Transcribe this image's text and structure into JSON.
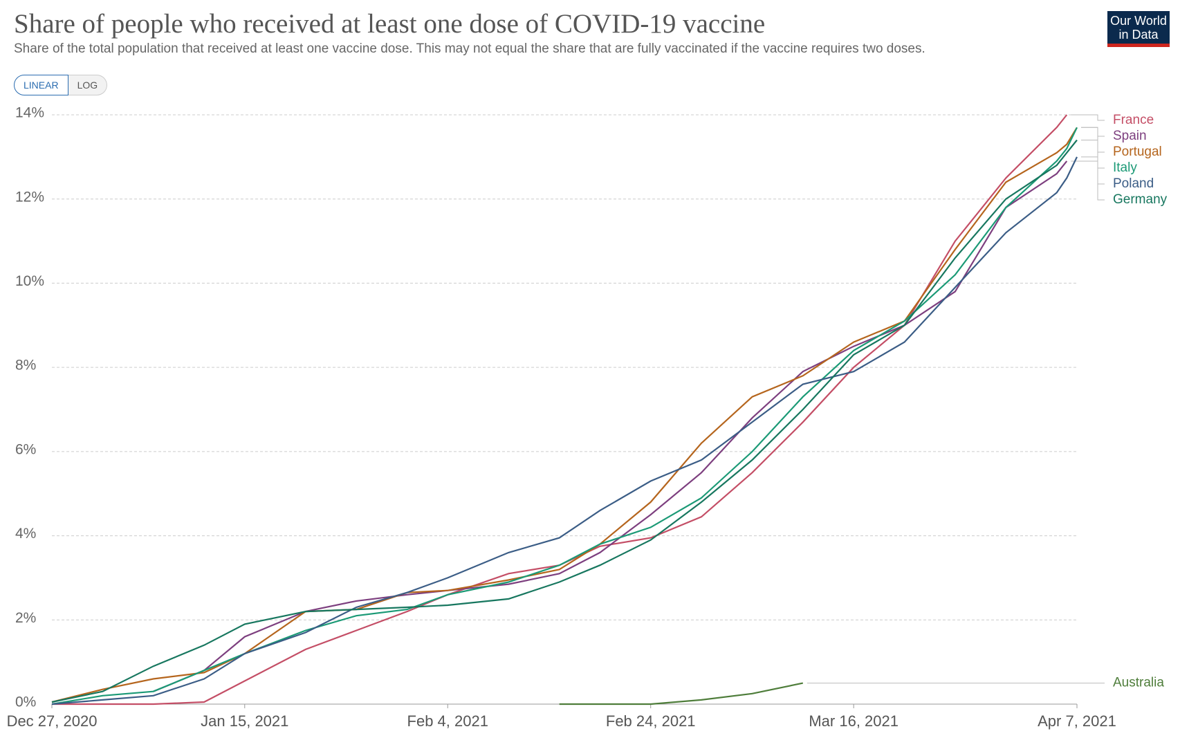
{
  "header": {
    "title": "Share of people who received at least one dose of COVID-19 vaccine",
    "subtitle": "Share of the total population that received at least one vaccine dose. This may not equal the share that are fully vaccinated if the vaccine requires two doses.",
    "toggle": [
      "LINEAR",
      "LOG"
    ],
    "logo": [
      "Our World",
      "in Data"
    ]
  },
  "chart_data": {
    "type": "line",
    "x": [
      "2020-12-27",
      "2021-01-01",
      "2021-01-06",
      "2021-01-11",
      "2021-01-15",
      "2021-01-21",
      "2021-01-26",
      "2021-01-31",
      "2021-02-04",
      "2021-02-10",
      "2021-02-15",
      "2021-02-19",
      "2021-02-24",
      "2021-03-01",
      "2021-03-06",
      "2021-03-11",
      "2021-03-16",
      "2021-03-21",
      "2021-03-26",
      "2021-03-31",
      "2021-04-05",
      "2021-04-06",
      "2021-04-07"
    ],
    "xlim": [
      "2020-12-27",
      "2021-04-07"
    ],
    "xticks": [
      {
        "value": "2020-12-27",
        "label": "Dec 27, 2020"
      },
      {
        "value": "2021-01-15",
        "label": "Jan 15, 2021"
      },
      {
        "value": "2021-02-04",
        "label": "Feb 4, 2021"
      },
      {
        "value": "2021-02-24",
        "label": "Feb 24, 2021"
      },
      {
        "value": "2021-03-16",
        "label": "Mar 16, 2021"
      },
      {
        "value": "2021-04-07",
        "label": "Apr 7, 2021"
      }
    ],
    "ylim": [
      0,
      14
    ],
    "yticks": [
      {
        "value": 0,
        "label": "0%"
      },
      {
        "value": 2,
        "label": "2%"
      },
      {
        "value": 4,
        "label": "4%"
      },
      {
        "value": 6,
        "label": "6%"
      },
      {
        "value": 8,
        "label": "8%"
      },
      {
        "value": 10,
        "label": "10%"
      },
      {
        "value": 12,
        "label": "12%"
      },
      {
        "value": 14,
        "label": "14%"
      }
    ],
    "grid": true,
    "series": [
      {
        "name": "France",
        "color": "#c44e66",
        "values": [
          0,
          0,
          0,
          0.05,
          0.55,
          1.3,
          1.75,
          2.2,
          2.6,
          3.1,
          3.3,
          3.75,
          3.95,
          4.45,
          5.5,
          6.7,
          8.0,
          9.0,
          11.0,
          12.5,
          13.7,
          14.0,
          null
        ]
      },
      {
        "name": "Spain",
        "color": "#7d3f7f",
        "values": [
          null,
          null,
          0.3,
          0.8,
          1.6,
          2.2,
          2.45,
          2.6,
          2.7,
          2.85,
          3.1,
          3.6,
          4.5,
          5.5,
          6.8,
          7.9,
          8.5,
          9.0,
          9.8,
          11.8,
          12.6,
          12.9,
          null
        ]
      },
      {
        "name": "Portugal",
        "color": "#b5651d",
        "values": [
          0.05,
          0.35,
          0.6,
          0.75,
          1.2,
          2.2,
          2.25,
          2.65,
          2.7,
          2.95,
          3.2,
          3.8,
          4.8,
          6.2,
          7.3,
          7.8,
          8.6,
          9.1,
          10.8,
          12.4,
          13.1,
          13.3,
          13.7
        ]
      },
      {
        "name": "Italy",
        "color": "#1b9a76",
        "values": [
          0,
          0.2,
          0.3,
          0.8,
          1.2,
          1.75,
          2.1,
          2.25,
          2.6,
          2.9,
          3.3,
          3.8,
          4.2,
          4.9,
          6.0,
          7.3,
          8.4,
          9.1,
          10.2,
          11.8,
          12.9,
          13.2,
          13.7
        ]
      },
      {
        "name": "Poland",
        "color": "#3b5d86",
        "values": [
          0,
          0.1,
          0.2,
          0.6,
          1.2,
          1.7,
          2.3,
          2.65,
          3.0,
          3.6,
          3.95,
          4.6,
          5.3,
          5.8,
          6.7,
          7.6,
          7.9,
          8.6,
          9.9,
          11.2,
          12.15,
          12.5,
          13.0
        ]
      },
      {
        "name": "Germany",
        "color": "#17775f",
        "values": [
          0.05,
          0.3,
          0.9,
          1.4,
          1.9,
          2.2,
          2.25,
          2.3,
          2.35,
          2.5,
          2.9,
          3.3,
          3.9,
          4.8,
          5.8,
          7.0,
          8.3,
          9.0,
          10.6,
          12.0,
          12.8,
          13.1,
          13.4
        ]
      },
      {
        "name": "Australia",
        "color": "#4e7d3a",
        "values": [
          null,
          null,
          null,
          null,
          null,
          null,
          null,
          null,
          null,
          null,
          0,
          0,
          0,
          0.1,
          0.25,
          0.5,
          null,
          null,
          null,
          null,
          null,
          null,
          null
        ]
      }
    ]
  }
}
